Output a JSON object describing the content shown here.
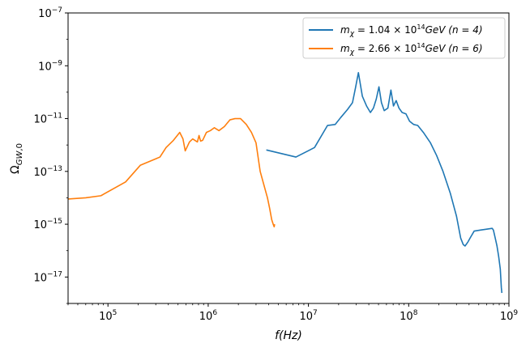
{
  "chart_data": {
    "type": "line",
    "xscale": "log",
    "yscale": "log",
    "xlim": [
      40000,
      1000000000
    ],
    "ylim": [
      1e-18,
      1e-07
    ],
    "xlabel": "f(Hz)",
    "ylabel": "Ω_GW,0",
    "xticks": [
      {
        "value": 100000,
        "base": "10",
        "exp": "5"
      },
      {
        "value": 1000000,
        "base": "10",
        "exp": "6"
      },
      {
        "value": 10000000,
        "base": "10",
        "exp": "7"
      },
      {
        "value": 100000000,
        "base": "10",
        "exp": "8"
      },
      {
        "value": 1000000000,
        "base": "10",
        "exp": "9"
      }
    ],
    "yticks": [
      {
        "value": 1e-17,
        "base": "10",
        "exp": "−17"
      },
      {
        "value": 1e-15,
        "base": "10",
        "exp": "−15"
      },
      {
        "value": 1e-13,
        "base": "10",
        "exp": "−13"
      },
      {
        "value": 1e-11,
        "base": "10",
        "exp": "−11"
      },
      {
        "value": 1e-09,
        "base": "10",
        "exp": "−9"
      },
      {
        "value": 1e-07,
        "base": "10",
        "exp": "−7"
      }
    ],
    "legend_position": "top-right",
    "grid": false,
    "series": [
      {
        "name": "m_χ = 1.04 × 10^14 GeV   (n = 4)",
        "color": "#1f77b4",
        "x": [
          3800000,
          7500000,
          11500000,
          15500000,
          18500000,
          21000000,
          24500000,
          27500000,
          29500000,
          31500000,
          34500000,
          38000000,
          41500000,
          44500000,
          47500000,
          50500000,
          53500000,
          57000000,
          62000000,
          66500000,
          70500000,
          75000000,
          80000000,
          86000000,
          94000000,
          102000000,
          112000000,
          123000000,
          140000000,
          165000000,
          190000000,
          220000000,
          260000000,
          300000000,
          330000000,
          350000000,
          365000000,
          378000000,
          392000000,
          410000000,
          450000000,
          520000000,
          600000000,
          680000000,
          700000000,
          730000000,
          760000000,
          790000000,
          820000000,
          840000000,
          850000000
        ],
        "y": [
          6.5e-13,
          3.5e-13,
          8e-13,
          5.5e-12,
          6e-12,
          1.1e-11,
          2.2e-11,
          4e-11,
          1.5e-10,
          5.5e-10,
          7e-11,
          3e-11,
          1.7e-11,
          2.5e-11,
          5.5e-11,
          1.6e-10,
          4e-11,
          2e-11,
          2.5e-11,
          1.2e-10,
          3e-11,
          4.8e-11,
          2.5e-11,
          1.7e-11,
          1.5e-11,
          8e-12,
          6e-12,
          5.5e-12,
          3e-12,
          1.2e-12,
          4e-13,
          1e-13,
          1.5e-14,
          2e-15,
          3e-16,
          1.7e-16,
          1.5e-16,
          1.8e-16,
          2.2e-16,
          3e-16,
          5.5e-16,
          6e-16,
          6.5e-16,
          7e-16,
          6e-16,
          3e-16,
          1.5e-16,
          6e-17,
          2e-17,
          4e-18,
          2.5e-18
        ]
      },
      {
        "name": "m_χ = 2.66 × 10^14 GeV   (n = 6)",
        "color": "#ff7f0e",
        "x": [
          40000,
          60000,
          85000,
          150000,
          210000,
          300000,
          330000,
          380000,
          450000,
          520000,
          560000,
          590000,
          650000,
          700000,
          780000,
          810000,
          840000,
          880000,
          960000,
          1050000,
          1150000,
          1280000,
          1450000,
          1650000,
          1850000,
          2100000,
          2400000,
          2700000,
          3000000,
          3300000,
          3600000,
          3900000,
          4100000,
          4300000,
          4450000,
          4550000,
          4600000
        ],
        "y": [
          9e-15,
          1e-14,
          1.2e-14,
          4e-14,
          1.7e-13,
          3e-13,
          3.5e-13,
          8e-13,
          1.5e-12,
          3e-12,
          1.7e-12,
          6e-13,
          1.3e-12,
          1.7e-12,
          1.3e-12,
          2.3e-12,
          1.4e-12,
          1.5e-12,
          3e-12,
          3.5e-12,
          4.5e-12,
          3.5e-12,
          5e-12,
          9e-12,
          1e-11,
          1e-11,
          6e-12,
          3e-12,
          1.2e-12,
          1e-13,
          3e-14,
          1e-14,
          4e-15,
          1.5e-15,
          1e-15,
          8e-16,
          1e-15
        ]
      }
    ]
  }
}
